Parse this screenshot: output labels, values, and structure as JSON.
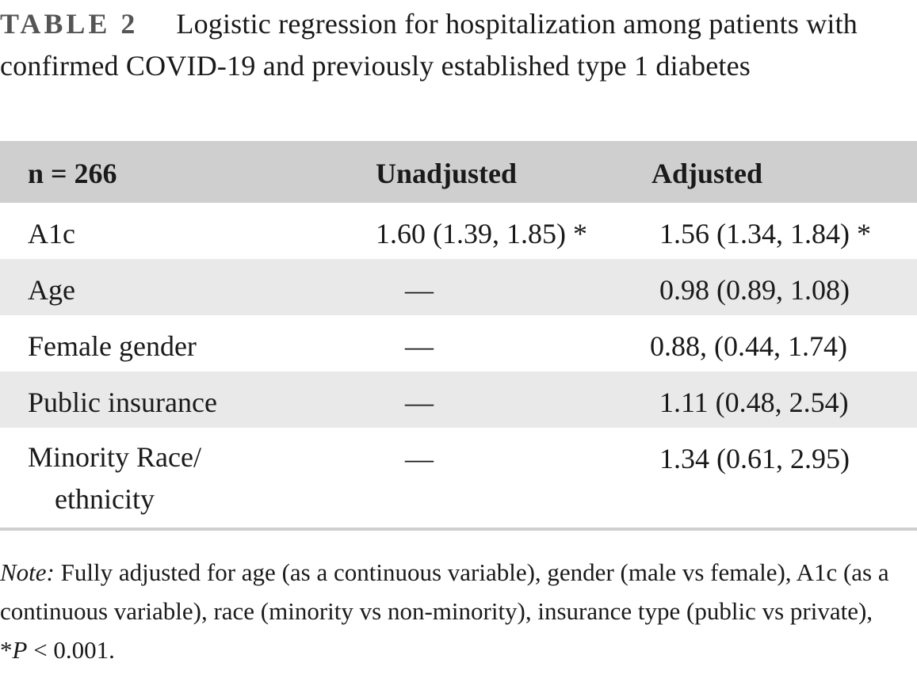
{
  "caption": {
    "label": "TABLE 2",
    "text": "Logistic regression for hospitalization among patients with confirmed COVID-19 and previously established type 1 diabetes"
  },
  "table": {
    "headers": [
      "n = 266",
      "Unadjusted",
      "Adjusted"
    ],
    "rows": [
      {
        "label": "A1c",
        "unadjusted": "1.60 (1.39, 1.85) *",
        "adjusted": "1.56 (1.34, 1.84) *"
      },
      {
        "label": "Age",
        "unadjusted": "—",
        "adjusted": "0.98 (0.89, 1.08)"
      },
      {
        "label": "Female gender",
        "unadjusted": "—",
        "adjusted": "0.88, (0.44, 1.74)"
      },
      {
        "label": "Public insurance",
        "unadjusted": "—",
        "adjusted": "1.11 (0.48, 2.54)"
      },
      {
        "label_line1": "Minority Race/",
        "label_line2": "ethnicity",
        "unadjusted": "—",
        "adjusted": "1.34 (0.61, 2.95)"
      }
    ]
  },
  "note": {
    "label": "Note:",
    "text": "Fully adjusted for age (as a continuous variable), gender (male vs female), A1c (as a continuous variable), race (minority vs non-minority), insurance type (public vs private),",
    "pvalue_prefix": "*",
    "pvalue_symbol": "P",
    "pvalue_suffix": " < 0.001."
  }
}
